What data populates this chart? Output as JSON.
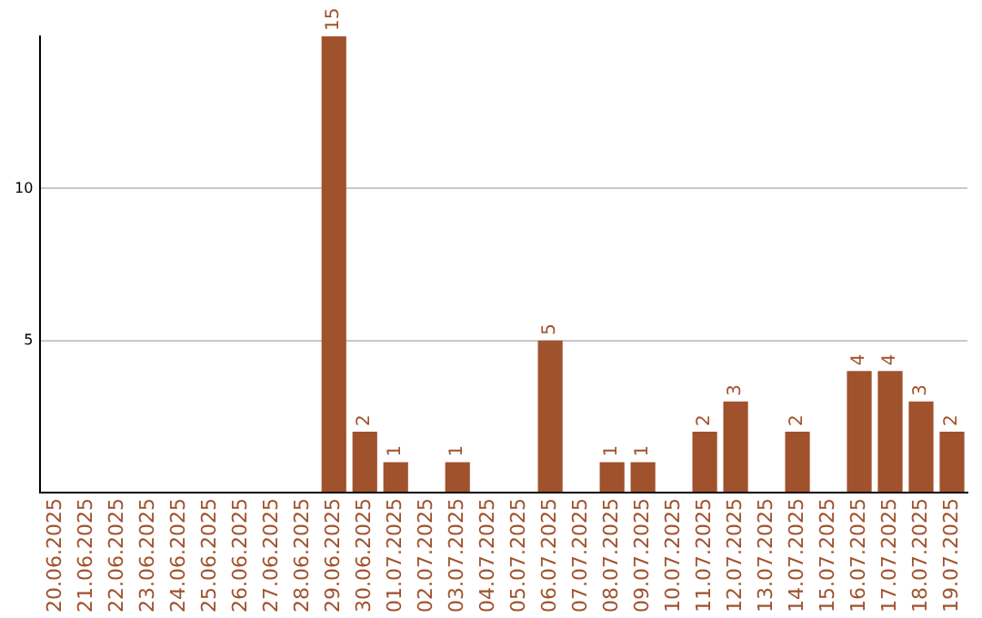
{
  "chart_data": {
    "type": "bar",
    "categories": [
      "20.06.2025",
      "21.06.2025",
      "22.06.2025",
      "23.06.2025",
      "24.06.2025",
      "25.06.2025",
      "26.06.2025",
      "27.06.2025",
      "28.06.2025",
      "29.06.2025",
      "30.06.2025",
      "01.07.2025",
      "02.07.2025",
      "03.07.2025",
      "04.07.2025",
      "05.07.2025",
      "06.07.2025",
      "07.07.2025",
      "08.07.2025",
      "09.07.2025",
      "10.07.2025",
      "11.07.2025",
      "12.07.2025",
      "13.07.2025",
      "14.07.2025",
      "15.07.2025",
      "16.07.2025",
      "17.07.2025",
      "18.07.2025",
      "19.07.2025"
    ],
    "values": [
      0,
      0,
      0,
      0,
      0,
      0,
      0,
      0,
      0,
      15,
      2,
      1,
      0,
      1,
      0,
      0,
      5,
      0,
      1,
      1,
      0,
      2,
      3,
      0,
      2,
      0,
      4,
      4,
      3,
      2
    ],
    "value_labels": [
      null,
      null,
      null,
      null,
      null,
      null,
      null,
      null,
      null,
      "15",
      "2",
      "1",
      null,
      "1",
      null,
      null,
      "5",
      null,
      "1",
      "1",
      null,
      "2",
      "3",
      null,
      "2",
      null,
      "4",
      "4",
      "3",
      "2"
    ],
    "color": "#a0522d",
    "ylim": [
      0,
      15
    ],
    "yticks": [
      {
        "value": 0,
        "label": null
      },
      5,
      10
    ],
    "grid": "y"
  }
}
